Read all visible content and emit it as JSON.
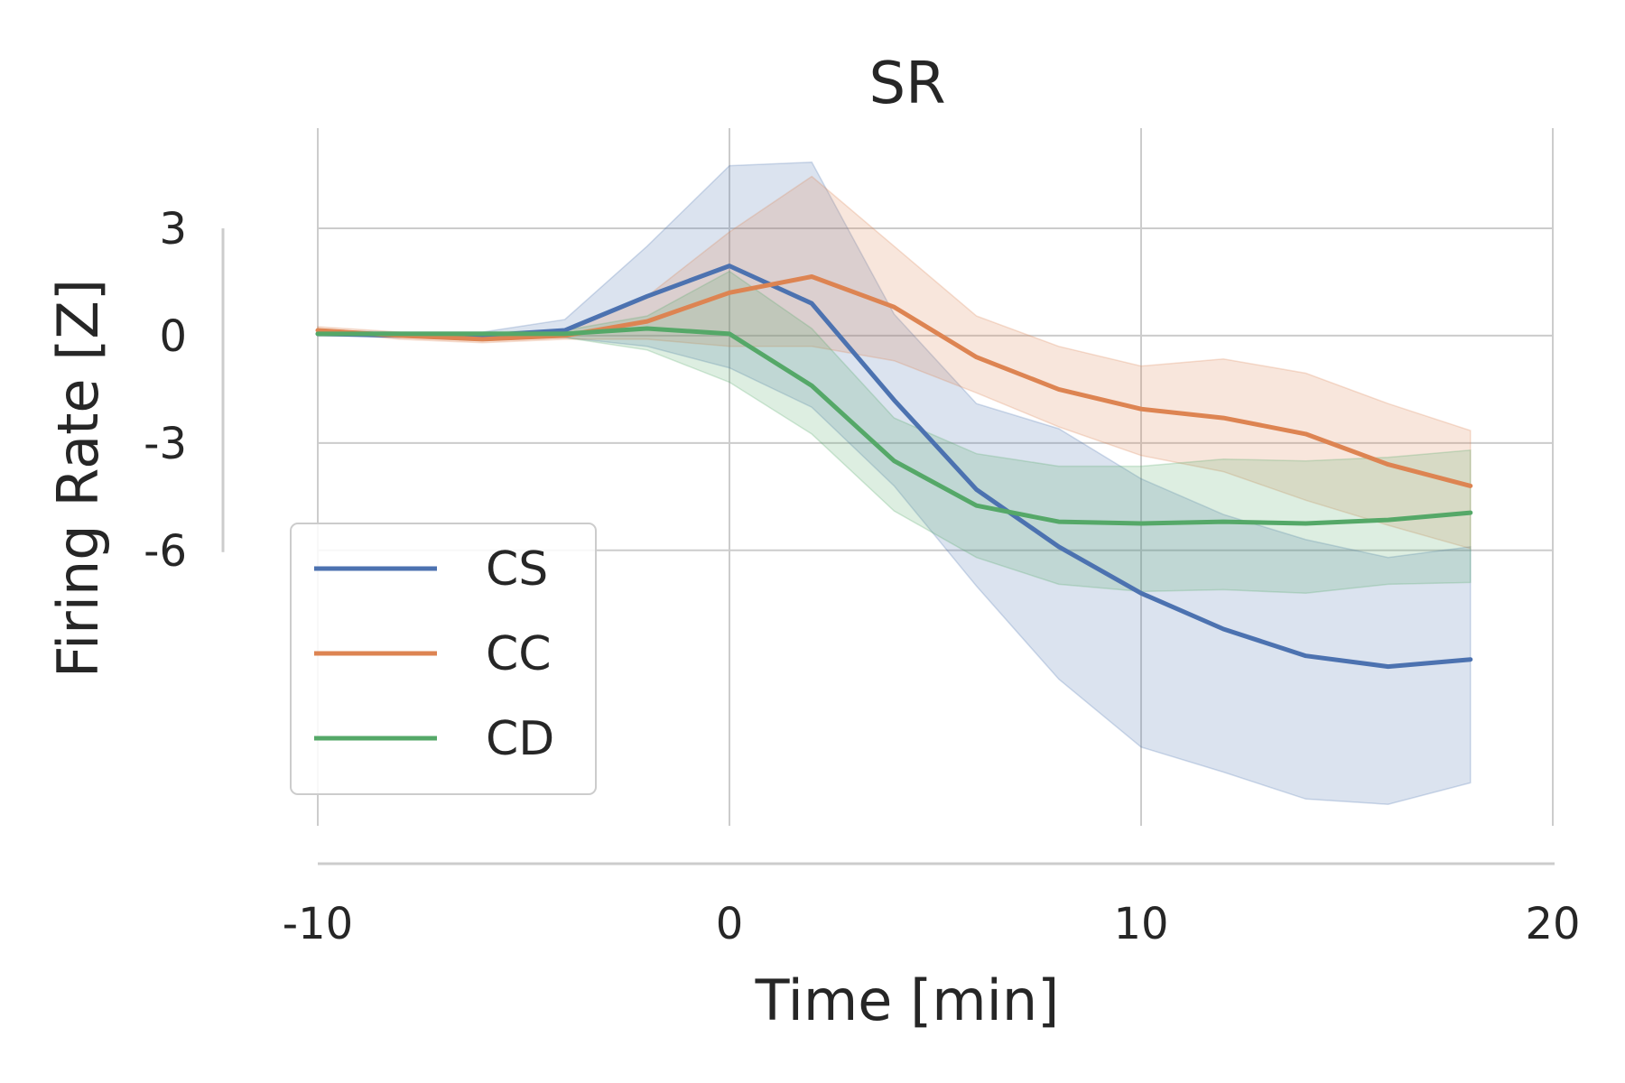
{
  "chart_data": {
    "type": "line",
    "title": "SR",
    "xlabel": "Time [min]",
    "ylabel": "Firing Rate [Z]",
    "xlim": [
      -10,
      20
    ],
    "ylim": [
      -13.7,
      5.8
    ],
    "xticks": [
      -10,
      0,
      10,
      20
    ],
    "xtick_labels": [
      "-10",
      "0",
      "10",
      "20"
    ],
    "yticks": [
      3,
      0,
      -3,
      -6
    ],
    "ytick_labels": [
      "3",
      "0",
      "-3",
      "-6"
    ],
    "grid": true,
    "legend_position": "lower-left",
    "x": [
      -10,
      -8,
      -6,
      -4,
      -2,
      0,
      2,
      4,
      6,
      8,
      10,
      12,
      14,
      16,
      18
    ],
    "series": [
      {
        "name": "CS",
        "color": "#4c72b0",
        "values": [
          0.05,
          0.0,
          0.0,
          0.15,
          1.1,
          1.95,
          0.9,
          -1.8,
          -4.3,
          -5.9,
          -7.2,
          -8.2,
          -8.95,
          -9.25,
          -9.05
        ],
        "lower": [
          0.0,
          0.0,
          -0.1,
          -0.05,
          -0.3,
          -0.9,
          -2.0,
          -4.2,
          -7.0,
          -9.6,
          -11.5,
          -12.2,
          -12.95,
          -13.1,
          -12.5
        ],
        "upper": [
          0.15,
          0.1,
          0.1,
          0.45,
          2.5,
          4.75,
          4.85,
          0.6,
          -1.9,
          -2.6,
          -4.0,
          -5.0,
          -5.7,
          -6.2,
          -5.9
        ]
      },
      {
        "name": "CC",
        "color": "#dd8452",
        "values": [
          0.15,
          0.0,
          -0.1,
          0.0,
          0.4,
          1.2,
          1.65,
          0.8,
          -0.6,
          -1.5,
          -2.05,
          -2.3,
          -2.75,
          -3.6,
          -4.2
        ],
        "lower": [
          0.1,
          -0.1,
          -0.2,
          -0.1,
          -0.1,
          -0.3,
          -0.3,
          -0.7,
          -1.6,
          -2.55,
          -3.35,
          -3.8,
          -4.6,
          -5.3,
          -5.95
        ],
        "upper": [
          0.25,
          0.1,
          0.05,
          0.15,
          1.1,
          2.9,
          4.45,
          2.5,
          0.55,
          -0.3,
          -0.85,
          -0.65,
          -1.05,
          -1.9,
          -2.65
        ]
      },
      {
        "name": "CD",
        "color": "#55a868",
        "values": [
          0.05,
          0.05,
          0.05,
          0.05,
          0.2,
          0.05,
          -1.4,
          -3.5,
          -4.75,
          -5.2,
          -5.25,
          -5.2,
          -5.25,
          -5.15,
          -4.95
        ],
        "lower": [
          0.0,
          0.0,
          0.0,
          -0.05,
          -0.4,
          -1.3,
          -2.75,
          -4.9,
          -6.2,
          -6.95,
          -7.15,
          -7.1,
          -7.2,
          -6.95,
          -6.9
        ],
        "upper": [
          0.1,
          0.1,
          0.1,
          0.15,
          0.55,
          1.8,
          0.2,
          -2.3,
          -3.3,
          -3.65,
          -3.65,
          -3.45,
          -3.5,
          -3.4,
          -3.2
        ]
      }
    ]
  }
}
